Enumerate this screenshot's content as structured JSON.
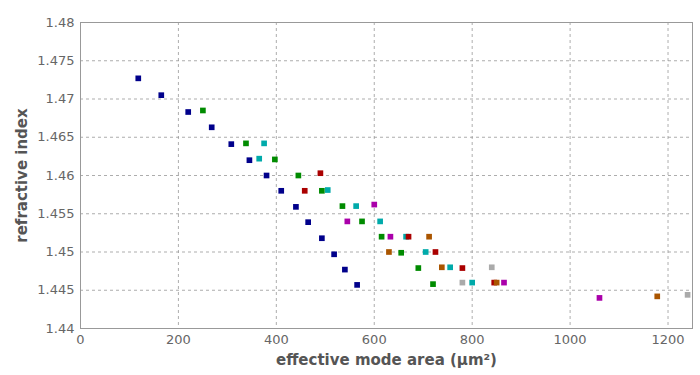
{
  "chart_data": {
    "type": "scatter",
    "x_label": "effective mode area (µm²)",
    "y_label": "refractive index",
    "xlim": [
      0,
      1250
    ],
    "xticks": [
      0,
      200,
      400,
      600,
      800,
      1000,
      1200
    ],
    "ylim": [
      1.44,
      1.48
    ],
    "yticks": [
      1.44,
      1.445,
      1.45,
      1.455,
      1.46,
      1.465,
      1.47,
      1.475,
      1.48
    ],
    "grid": true,
    "marker": "square",
    "series": [
      {
        "color": "#00008b",
        "x": [
          118,
          165,
          220,
          268,
          308,
          345,
          380,
          410,
          440,
          465,
          493,
          518,
          540,
          565
        ],
        "values": [
          1.4727,
          1.4705,
          1.4683,
          1.4663,
          1.4641,
          1.462,
          1.46,
          1.458,
          1.4559,
          1.4539,
          1.4518,
          1.4497,
          1.4477,
          1.4457
        ]
      },
      {
        "color": "#008b00",
        "x": [
          250,
          338,
          397,
          445,
          493,
          535,
          575,
          615,
          655,
          690,
          720
        ],
        "values": [
          1.4685,
          1.4642,
          1.4621,
          1.46,
          1.458,
          1.456,
          1.454,
          1.452,
          1.4499,
          1.4479,
          1.4458
        ]
      },
      {
        "color": "#00aaaa",
        "x": [
          375,
          365,
          505,
          563,
          612,
          665,
          705,
          755,
          800
        ],
        "values": [
          1.4642,
          1.4622,
          1.4581,
          1.456,
          1.454,
          1.452,
          1.45,
          1.448,
          1.446
        ]
      },
      {
        "color": "#aa0000",
        "x": [
          458,
          490,
          670,
          725,
          780,
          845
        ],
        "values": [
          1.458,
          1.4603,
          1.452,
          1.45,
          1.4479,
          1.446
        ]
      },
      {
        "color": "#aa00aa",
        "x": [
          545,
          600,
          633,
          865,
          1060
        ],
        "values": [
          1.454,
          1.4562,
          1.452,
          1.446,
          1.444
        ]
      },
      {
        "color": "#aa5500",
        "x": [
          630,
          712,
          738,
          850,
          1178
        ],
        "values": [
          1.45,
          1.452,
          1.448,
          1.446,
          1.4442
        ]
      },
      {
        "color": "#aaaaaa",
        "x": [
          780,
          840,
          1240
        ],
        "values": [
          1.446,
          1.448,
          1.4444
        ]
      }
    ]
  }
}
